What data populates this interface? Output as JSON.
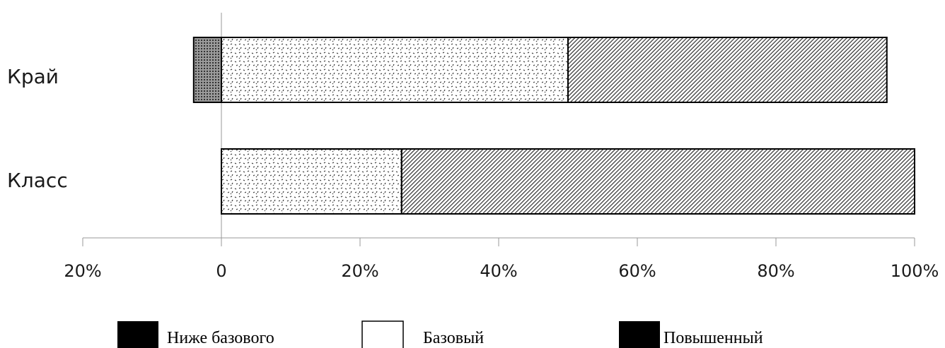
{
  "chart_data": {
    "type": "bar",
    "orientation": "horizontal",
    "stacked": true,
    "categories": [
      "Край",
      "Класс"
    ],
    "series": [
      {
        "name": "Ниже базового",
        "values": [
          -4,
          0
        ],
        "pattern": "dense-dots",
        "color": "#555555"
      },
      {
        "name": "Базовый",
        "values": [
          50,
          26
        ],
        "pattern": "sparse-dots",
        "color": "#ffffff"
      },
      {
        "name": "Повышенный",
        "values": [
          46,
          74
        ],
        "pattern": "diagonal-hatch",
        "color": "#000000"
      }
    ],
    "x_ticks": [
      "20%",
      "0",
      "20%",
      "40%",
      "60%",
      "80%",
      "100%"
    ],
    "xlim": [
      -20,
      100
    ],
    "grid": false,
    "legend_position": "bottom"
  },
  "legend": {
    "items": [
      {
        "label": "Ниже базового",
        "swatch": "filled"
      },
      {
        "label": "Базовый",
        "swatch": "outline"
      },
      {
        "label": "Повышенный",
        "swatch": "filled"
      }
    ]
  },
  "colors": {
    "axis": "#999999",
    "bar_outline": "#000000",
    "text": "#1a1a1a"
  }
}
